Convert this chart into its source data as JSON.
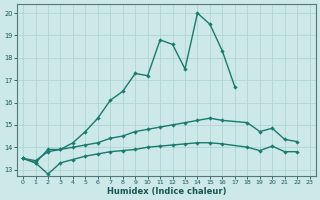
{
  "xlabel": "Humidex (Indice chaleur)",
  "background_color": "#cce8e8",
  "grid_color": "#b0d4d4",
  "line_color": "#1a7a6e",
  "line1_x": [
    0,
    1,
    2,
    3,
    4,
    5,
    6,
    7,
    8,
    9,
    10,
    11,
    12,
    13,
    14,
    15,
    16,
    17
  ],
  "line1_y": [
    13.5,
    13.3,
    13.9,
    13.9,
    14.2,
    14.7,
    15.3,
    16.1,
    16.5,
    17.3,
    17.2,
    18.8,
    18.6,
    17.5,
    20.0,
    19.5,
    18.3,
    16.7
  ],
  "line2_x": [
    0,
    1,
    2,
    3,
    4,
    5,
    6,
    7,
    8,
    9,
    10,
    11,
    12,
    13,
    14,
    15,
    16,
    18,
    19,
    20,
    21,
    22
  ],
  "line2_y": [
    13.5,
    13.4,
    13.8,
    13.9,
    14.0,
    14.1,
    14.2,
    14.4,
    14.5,
    14.7,
    14.8,
    14.9,
    15.0,
    15.1,
    15.2,
    15.3,
    15.2,
    15.1,
    14.7,
    14.85,
    14.35,
    14.25
  ],
  "line3_x": [
    0,
    1,
    2,
    3,
    4,
    5,
    6,
    7,
    8,
    9,
    10,
    11,
    12,
    13,
    14,
    15,
    16,
    18,
    19,
    20,
    21,
    22
  ],
  "line3_y": [
    13.5,
    13.3,
    12.8,
    13.3,
    13.45,
    13.6,
    13.7,
    13.8,
    13.85,
    13.9,
    14.0,
    14.05,
    14.1,
    14.15,
    14.2,
    14.2,
    14.15,
    14.0,
    13.85,
    14.05,
    13.8,
    13.8
  ],
  "ylim": [
    12.7,
    20.4
  ],
  "xlim": [
    -0.5,
    23.5
  ],
  "yticks": [
    13,
    14,
    15,
    16,
    17,
    18,
    19,
    20
  ],
  "xticks": [
    0,
    1,
    2,
    3,
    4,
    5,
    6,
    7,
    8,
    9,
    10,
    11,
    12,
    13,
    14,
    15,
    16,
    17,
    18,
    19,
    20,
    21,
    22,
    23
  ]
}
